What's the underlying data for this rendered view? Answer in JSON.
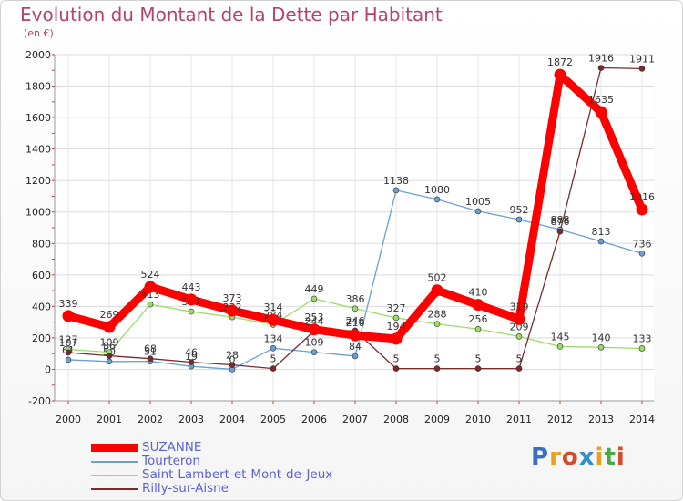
{
  "header": {
    "title": "Evolution du Montant de la Dette par Habitant",
    "subtitle": "(en €)"
  },
  "logo": {
    "letters": [
      "P",
      "r",
      "o",
      "x",
      "i",
      "t",
      "i"
    ],
    "colors": [
      "#3a6fc4",
      "#e8a020",
      "#d54a2a",
      "#2f8fd0",
      "#e8a020",
      "#47a847",
      "#d54a2a"
    ]
  },
  "chart_data": {
    "type": "line",
    "title": "Evolution du Montant de la Dette par Habitant",
    "subtitle": "(en €)",
    "xlabel": "",
    "ylabel": "",
    "ylim": [
      -200,
      2000
    ],
    "yticks": [
      -200,
      0,
      200,
      400,
      600,
      800,
      1000,
      1200,
      1400,
      1600,
      1800,
      2000
    ],
    "grid": true,
    "legend_position": "bottom-left",
    "categories": [
      "2000",
      "2001",
      "2002",
      "2003",
      "2004",
      "2005",
      "2006",
      "2007",
      "2008",
      "2009",
      "2010",
      "2011",
      "2012",
      "2013",
      "2014"
    ],
    "series": [
      {
        "name": "SUZANNE",
        "color": "#ff0000",
        "values": [
          339,
          269,
          524,
          443,
          373,
          314,
          253,
          216,
          194,
          502,
          410,
          319,
          1872,
          1635,
          1016
        ]
      },
      {
        "name": "Tourteron",
        "color": "#6a9fd4",
        "values": [
          61,
          50,
          51,
          19,
          0,
          134,
          109,
          84,
          1138,
          1080,
          1005,
          952,
          888,
          813,
          736
        ]
      },
      {
        "name": "Saint-Lambert-et-Mont-de-Jeux",
        "color": "#99dd66",
        "values": [
          127,
          109,
          413,
          367,
          332,
          284,
          449,
          386,
          327,
          288,
          256,
          209,
          145,
          140,
          133
        ]
      },
      {
        "name": "Rilly-sur-Aisne",
        "color": "#7a2a2a",
        "values": [
          107,
          86,
          68,
          46,
          28,
          5,
          244,
          246,
          5,
          5,
          5,
          5,
          876,
          1916,
          1911
        ]
      }
    ]
  }
}
